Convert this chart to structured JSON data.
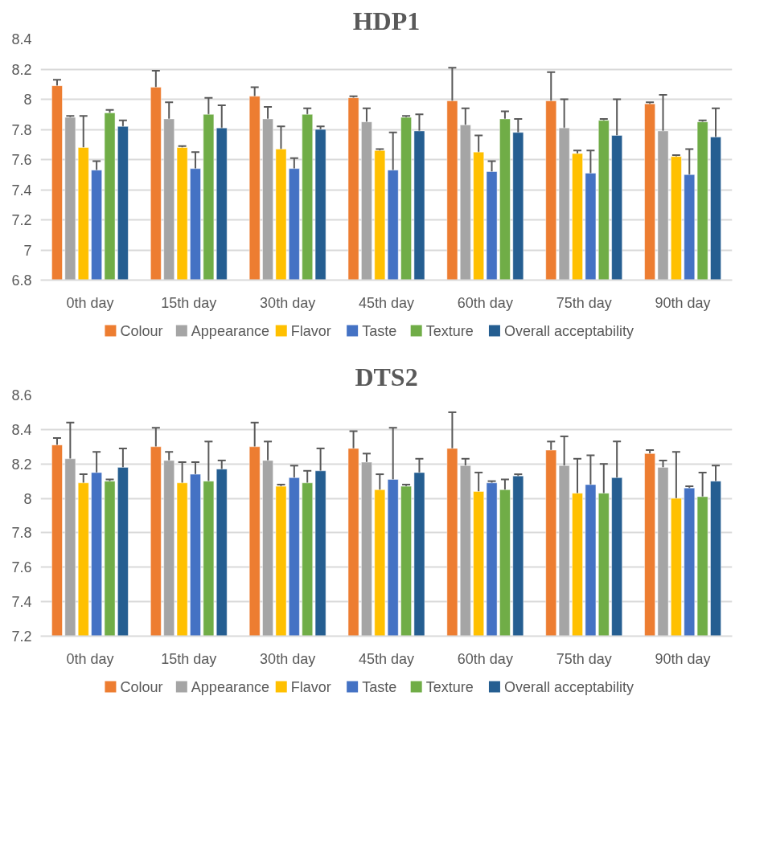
{
  "chart_data": [
    {
      "type": "bar",
      "title": "HDP1",
      "categories": [
        "0th day",
        "15th day",
        "30th day",
        "45th day",
        "60th day",
        "75th day",
        "90th day"
      ],
      "ylim": [
        6.8,
        8.4
      ],
      "yticks": [
        6.8,
        7,
        7.2,
        7.4,
        7.6,
        7.8,
        8,
        8.2,
        8.4
      ],
      "grid": "y",
      "legend": "bottom",
      "series": [
        {
          "name": "Colour",
          "color": "#ed7d31",
          "values": [
            8.09,
            8.08,
            8.02,
            8.01,
            7.99,
            7.99,
            7.97
          ],
          "errors": [
            0.04,
            0.11,
            0.06,
            0.01,
            0.22,
            0.19,
            0.01
          ]
        },
        {
          "name": "Appearance",
          "color": "#a5a5a5",
          "values": [
            7.88,
            7.87,
            7.87,
            7.85,
            7.83,
            7.81,
            7.79
          ],
          "errors": [
            0.01,
            0.11,
            0.08,
            0.09,
            0.11,
            0.19,
            0.24
          ]
        },
        {
          "name": "Flavor",
          "color": "#ffc000",
          "values": [
            7.68,
            7.68,
            7.67,
            7.66,
            7.65,
            7.64,
            7.62
          ],
          "errors": [
            0.21,
            0.01,
            0.15,
            0.01,
            0.11,
            0.02,
            0.01
          ]
        },
        {
          "name": "Taste",
          "color": "#4472c4",
          "values": [
            7.53,
            7.54,
            7.54,
            7.53,
            7.52,
            7.51,
            7.5
          ],
          "errors": [
            0.06,
            0.11,
            0.07,
            0.25,
            0.07,
            0.15,
            0.17
          ]
        },
        {
          "name": "Texture",
          "color": "#70ad47",
          "values": [
            7.91,
            7.9,
            7.9,
            7.88,
            7.87,
            7.86,
            7.85
          ],
          "errors": [
            0.02,
            0.11,
            0.04,
            0.01,
            0.05,
            0.01,
            0.01
          ]
        },
        {
          "name": "Overall acceptability",
          "color": "#255e91",
          "values": [
            7.82,
            7.81,
            7.8,
            7.79,
            7.78,
            7.76,
            7.75
          ],
          "errors": [
            0.04,
            0.15,
            0.02,
            0.11,
            0.09,
            0.24,
            0.19
          ]
        }
      ]
    },
    {
      "type": "bar",
      "title": "DTS2",
      "categories": [
        "0th day",
        "15th day",
        "30th day",
        "45th day",
        "60th day",
        "75th day",
        "90th day"
      ],
      "ylim": [
        7.2,
        8.6
      ],
      "yticks": [
        7.2,
        7.4,
        7.6,
        7.8,
        8,
        8.2,
        8.4,
        8.6
      ],
      "grid": "y",
      "legend": "bottom",
      "series": [
        {
          "name": "Colour",
          "color": "#ed7d31",
          "values": [
            8.31,
            8.3,
            8.3,
            8.29,
            8.29,
            8.28,
            8.26
          ],
          "errors": [
            0.04,
            0.11,
            0.14,
            0.1,
            0.21,
            0.05,
            0.02
          ]
        },
        {
          "name": "Appearance",
          "color": "#a5a5a5",
          "values": [
            8.23,
            8.22,
            8.22,
            8.21,
            8.19,
            8.19,
            8.18
          ],
          "errors": [
            0.21,
            0.05,
            0.11,
            0.05,
            0.04,
            0.17,
            0.04
          ]
        },
        {
          "name": "Flavor",
          "color": "#ffc000",
          "values": [
            8.09,
            8.09,
            8.07,
            8.05,
            8.04,
            8.03,
            8.0
          ],
          "errors": [
            0.05,
            0.12,
            0.01,
            0.09,
            0.11,
            0.2,
            0.27
          ]
        },
        {
          "name": "Taste",
          "color": "#4472c4",
          "values": [
            8.15,
            8.14,
            8.12,
            8.11,
            8.09,
            8.08,
            8.06
          ],
          "errors": [
            0.12,
            0.07,
            0.07,
            0.3,
            0.01,
            0.17,
            0.01
          ]
        },
        {
          "name": "Texture",
          "color": "#70ad47",
          "values": [
            8.1,
            8.1,
            8.09,
            8.07,
            8.05,
            8.03,
            8.01
          ],
          "errors": [
            0.01,
            0.23,
            0.07,
            0.01,
            0.06,
            0.17,
            0.14
          ]
        },
        {
          "name": "Overall acceptability",
          "color": "#255e91",
          "values": [
            8.18,
            8.17,
            8.16,
            8.15,
            8.13,
            8.12,
            8.1
          ],
          "errors": [
            0.11,
            0.05,
            0.13,
            0.08,
            0.01,
            0.21,
            0.09
          ]
        }
      ]
    }
  ]
}
